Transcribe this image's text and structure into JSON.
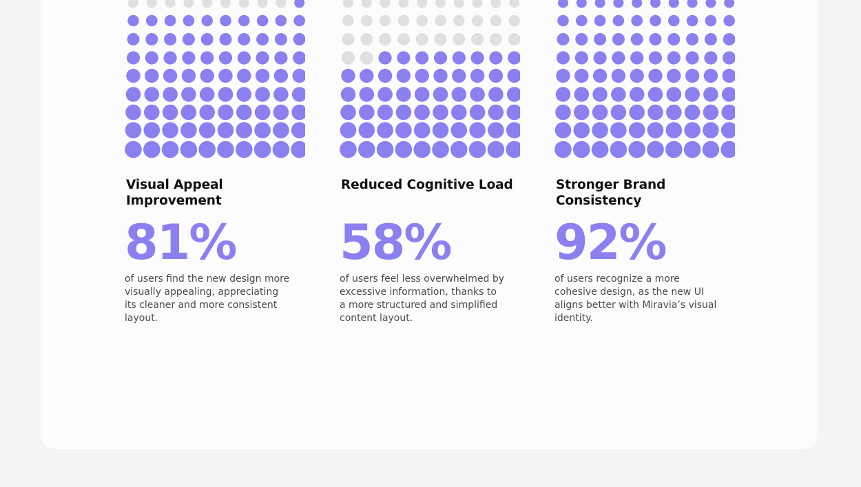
{
  "colors": {
    "filled": "#8b80f0",
    "empty": "#e0e0e0",
    "card": "#fcfcfc",
    "background": "#f4f4f6"
  },
  "stats": [
    {
      "title": "Visual Appeal Improvement",
      "percent": "81%",
      "description": "of users find the new design more visually appealing, appreciating its cleaner and more consistent layout."
    },
    {
      "title": "Reduced Cognitive Load",
      "percent": "58%",
      "description": "of users feel less overwhelmed by excessive information, thanks to a more structured and simplified content layout."
    },
    {
      "title": "Stronger Brand Consistency",
      "percent": "92%",
      "description": "of users recognize a more cohesive design, as the new UI aligns better with Miravia’s visual identity."
    }
  ],
  "chart_data": [
    {
      "type": "waffle",
      "rows": 10,
      "columns": 10,
      "value": 81,
      "total": 100
    },
    {
      "type": "waffle",
      "rows": 10,
      "columns": 10,
      "value": 58,
      "total": 100
    },
    {
      "type": "waffle",
      "rows": 10,
      "columns": 10,
      "value": 92,
      "total": 100
    }
  ]
}
